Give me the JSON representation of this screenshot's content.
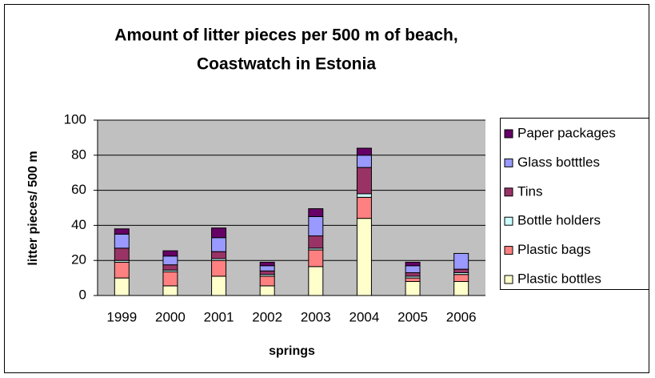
{
  "chart_data": {
    "type": "stacked_bar",
    "title": [
      "Amount of litter pieces per 500 m of beach,",
      "Coastwatch in Estonia"
    ],
    "x_label": "springs",
    "y_label": "litter pieces/ 500 m",
    "categories": [
      "1999",
      "2000",
      "2001",
      "2002",
      "2003",
      "2004",
      "2005",
      "2006"
    ],
    "series": [
      {
        "name": "Plastic bottles",
        "color": "#ffffcc",
        "values": [
          10,
          5.5,
          11,
          5.5,
          16.5,
          44,
          8,
          8
        ]
      },
      {
        "name": "Plastic bags",
        "color": "#ff8080",
        "values": [
          9,
          8,
          9,
          5.5,
          9.5,
          12,
          2,
          4
        ]
      },
      {
        "name": "Bottle holders",
        "color": "#ccffff",
        "values": [
          1,
          1,
          1,
          1,
          1,
          2,
          1,
          1
        ]
      },
      {
        "name": "Tins",
        "color": "#993366",
        "values": [
          7,
          3,
          4,
          2,
          7,
          15,
          2,
          2
        ]
      },
      {
        "name": "Glass botttles",
        "color": "#9999ff",
        "values": [
          8,
          5,
          8,
          3,
          11,
          7,
          4,
          9
        ]
      },
      {
        "name": "Paper packages",
        "color": "#660066",
        "values": [
          3,
          3,
          5.5,
          2,
          4.5,
          4,
          2,
          0
        ]
      }
    ],
    "ylim": [
      0,
      100
    ],
    "yticks": [
      0,
      20,
      40,
      60,
      80,
      100
    ],
    "grid": true,
    "legend": "right"
  }
}
